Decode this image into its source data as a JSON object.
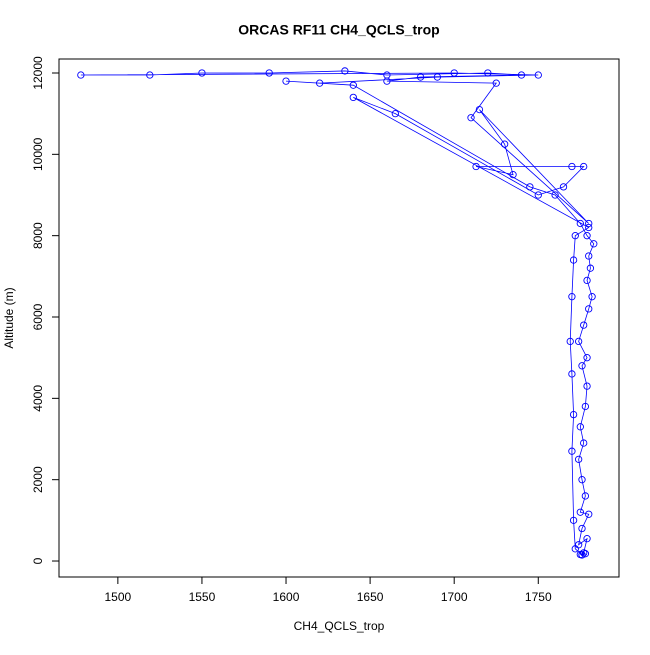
{
  "chart_data": {
    "type": "line",
    "title": "ORCAS RF11 CH4_QCLS_trop",
    "x_label": "CH4_QCLS_trop",
    "y_label": "Altitude (m)",
    "x": [
      1776,
      1778,
      1775,
      1777,
      1779,
      1774,
      1776,
      1780,
      1775,
      1778,
      1776,
      1774,
      1777,
      1775,
      1778,
      1779,
      1776,
      1779,
      1774,
      1777,
      1780,
      1782,
      1779,
      1781,
      1780,
      1783,
      1779,
      1775,
      1760,
      1745,
      1640,
      1600,
      1620,
      1690,
      1750,
      1700,
      1478,
      1519,
      1550,
      1590,
      1635,
      1660,
      1720,
      1740,
      1680,
      1660,
      1725,
      1710,
      1780,
      1715,
      1730,
      1735,
      1713,
      1770,
      1777,
      1765,
      1750,
      1665,
      1640,
      1780,
      1772,
      1771,
      1770,
      1769,
      1770,
      1771,
      1770,
      1771,
      1772,
      1776
    ],
    "series": [
      {
        "name": "CH4_QCLS_trop",
        "color": "#0000ff",
        "values": [
          150,
          180,
          160,
          200,
          550,
          400,
          800,
          1150,
          1200,
          1600,
          2000,
          2500,
          2900,
          3300,
          3800,
          4300,
          4800,
          5000,
          5400,
          5800,
          6200,
          6500,
          6900,
          7200,
          7500,
          7800,
          8000,
          8300,
          9000,
          9200,
          11700,
          11800,
          11750,
          11900,
          11950,
          12000,
          11950,
          11950,
          12000,
          12000,
          12050,
          11950,
          12000,
          11950,
          11900,
          11800,
          11750,
          10900,
          8300,
          11100,
          10250,
          9500,
          9700,
          9700,
          9700,
          9200,
          9000,
          11000,
          11400,
          8200,
          8000,
          7400,
          6500,
          5400,
          4600,
          3600,
          2700,
          1000,
          300,
          150
        ]
      }
    ],
    "xlim": [
      1465,
      1798
    ],
    "ylim": [
      -393,
      12344
    ],
    "xticks": [
      1500,
      1550,
      1600,
      1650,
      1700,
      1750
    ],
    "yticks": [
      0,
      2000,
      4000,
      6000,
      8000,
      10000,
      12000
    ]
  }
}
